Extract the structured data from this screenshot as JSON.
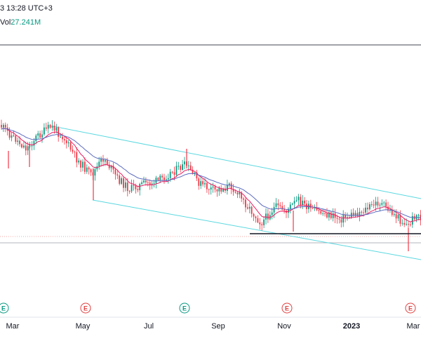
{
  "header": {
    "timestamp": "3 13:28 UTC+3",
    "volume_label": "Vol",
    "volume_value": "27.241M"
  },
  "colors": {
    "up": "#089981",
    "down": "#f23645",
    "ma_fast": "#e91e63",
    "ma_slow": "#5c6bc0",
    "channel": "#5ad8e0",
    "support": "#131722",
    "earnings_up": "#089981",
    "earnings_down": "#e04040"
  },
  "chart_data": {
    "type": "candlestick",
    "x_axis": {
      "labels": [
        "Mar",
        "May",
        "Jul",
        "Sep",
        "Nov",
        "2023",
        "Mar"
      ],
      "bold_labels": [
        "2023"
      ]
    },
    "earnings_markers": [
      {
        "label": "E",
        "color": "green"
      },
      {
        "label": "E",
        "color": "red"
      },
      {
        "label": "E",
        "color": "green"
      },
      {
        "label": "E",
        "color": "red"
      },
      {
        "label": "E",
        "color": "red"
      }
    ],
    "overlays": [
      "fast moving average",
      "slow moving average",
      "descending channel",
      "horizontal support line"
    ],
    "grid": false,
    "legend": "none"
  }
}
